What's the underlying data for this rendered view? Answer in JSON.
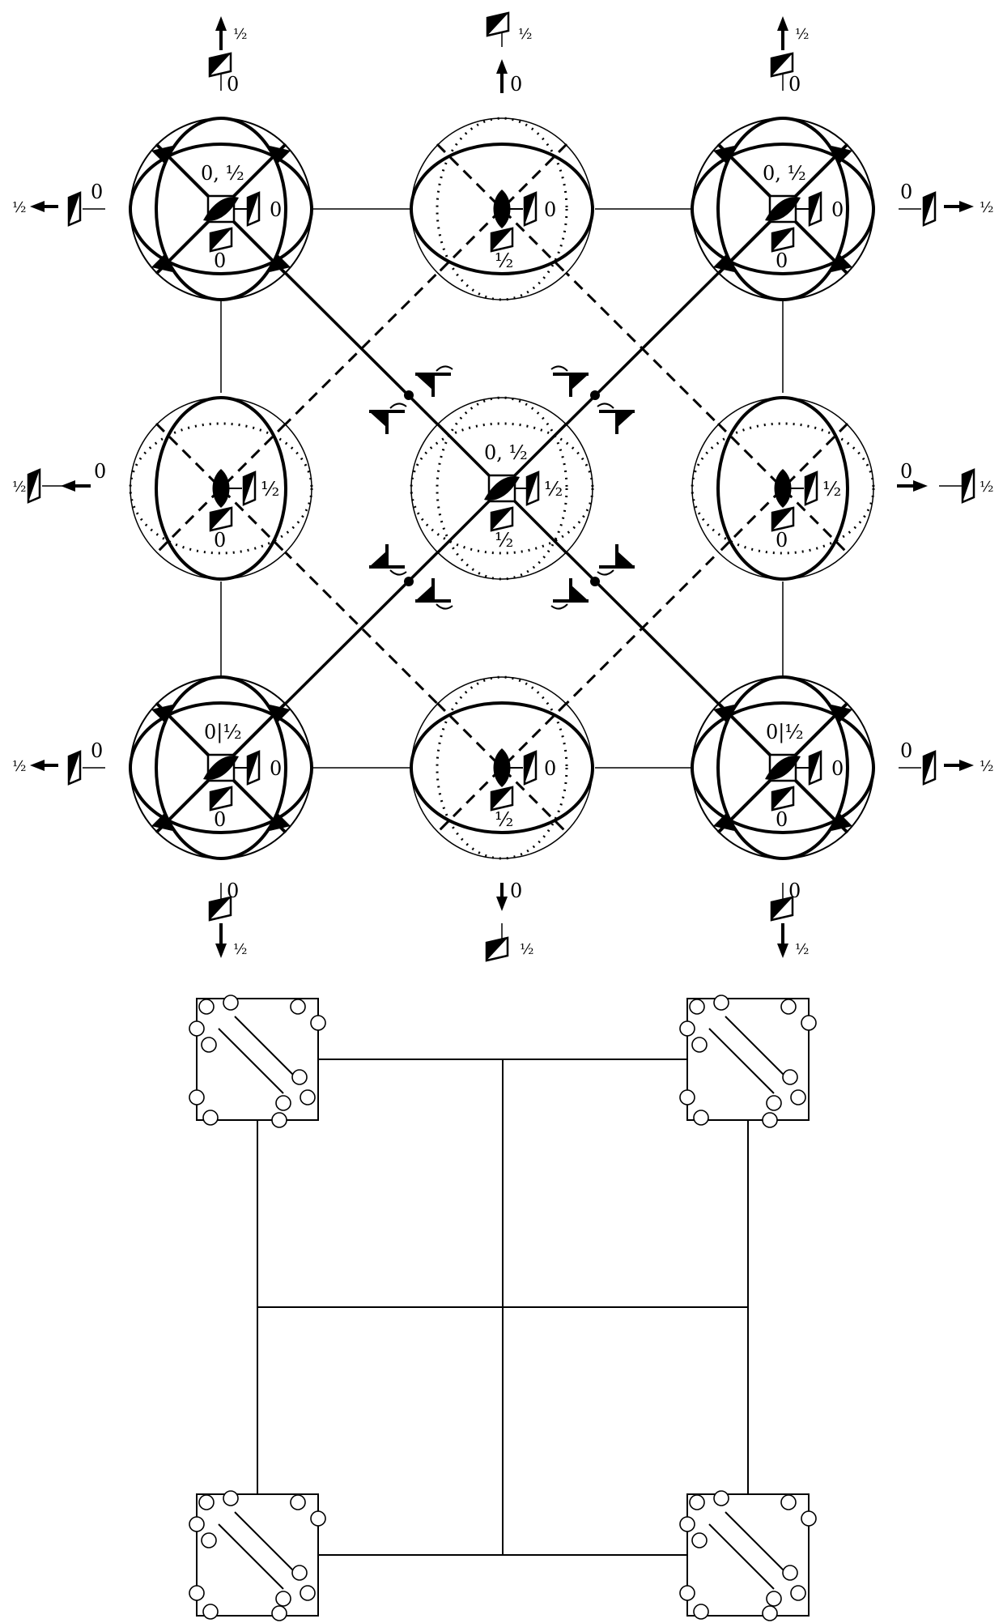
{
  "labels": {
    "zero": "0",
    "half": "½",
    "zero_half": "0, ½",
    "zero_bar_half": "0|½"
  },
  "symbols": {
    "twofold_axis": "lens-icon",
    "fourbar_axis": "square-lens-icon",
    "glide_plane": "parallelogram-icon",
    "mirror_plane": "thick-line"
  },
  "colors": {
    "ink": "#000000",
    "paper": "#ffffff"
  }
}
